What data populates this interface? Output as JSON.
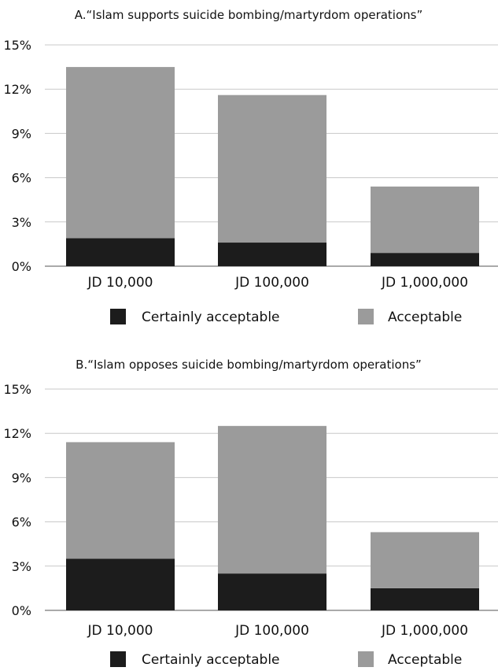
{
  "colors": {
    "certain": "#1c1c1c",
    "acceptable": "#9b9b9b",
    "grid": "#c8c8c8"
  },
  "chart_data": [
    {
      "type": "bar",
      "stacked": true,
      "title": "A.“Islam supports suicide bombing/martyrdom operations”",
      "categories": [
        "JD 10,000",
        "JD 100,000",
        "JD 1,000,000"
      ],
      "series": [
        {
          "name": "Certainly acceptable",
          "values": [
            1.9,
            1.6,
            0.9
          ]
        },
        {
          "name": "Acceptable",
          "values": [
            11.6,
            10.0,
            4.5
          ]
        }
      ],
      "totals": [
        13.5,
        11.6,
        5.4
      ],
      "ylim": [
        0,
        15
      ],
      "yticks": [
        "0%",
        "3%",
        "6%",
        "9%",
        "12%",
        "15%"
      ],
      "grid": true,
      "legend": "bottom"
    },
    {
      "type": "bar",
      "stacked": true,
      "title": "B.“Islam opposes suicide bombing/martyrdom operations”",
      "categories": [
        "JD 10,000",
        "JD 100,000",
        "JD 1,000,000"
      ],
      "series": [
        {
          "name": "Certainly acceptable",
          "values": [
            3.5,
            2.5,
            1.5
          ]
        },
        {
          "name": "Acceptable",
          "values": [
            7.9,
            10.0,
            3.8
          ]
        }
      ],
      "totals": [
        11.4,
        12.5,
        5.3
      ],
      "ylim": [
        0,
        15
      ],
      "yticks": [
        "0%",
        "3%",
        "6%",
        "9%",
        "12%",
        "15%"
      ],
      "grid": true,
      "legend": "bottom"
    }
  ]
}
